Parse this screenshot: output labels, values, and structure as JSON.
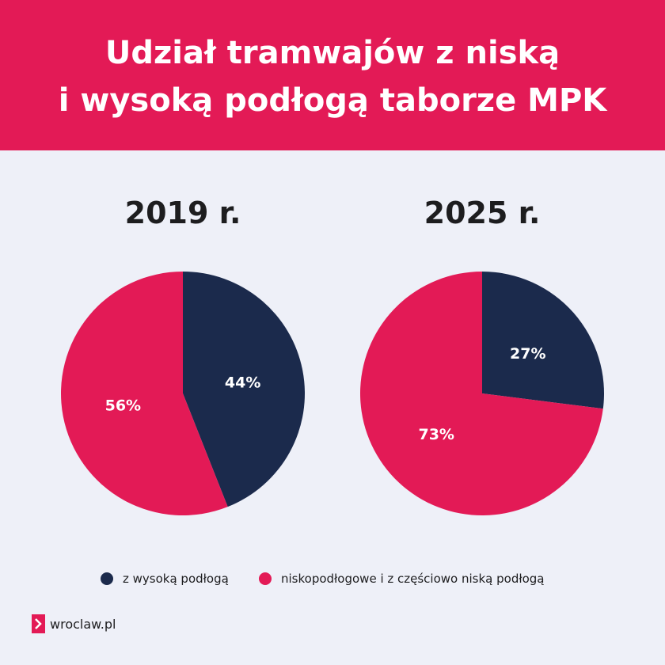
{
  "title": [
    "Udział tramwajów z niską",
    "i wysoką podłogą taborze MPK"
  ],
  "chart_data": [
    {
      "type": "pie",
      "title": "2019 r.",
      "categories": [
        "z wysoką podłogą",
        "niskopodłogowe i z częściowo niską podłogą"
      ],
      "values": [
        44,
        56
      ],
      "value_labels": [
        "44%",
        "56%"
      ],
      "colors": [
        "#1b2a4c",
        "#e31a56"
      ]
    },
    {
      "type": "pie",
      "title": "2025 r.",
      "categories": [
        "z wysoką podłogą",
        "niskopodłogowe i z częściowo niską podłogą"
      ],
      "values": [
        27,
        73
      ],
      "value_labels": [
        "27%",
        "73%"
      ],
      "colors": [
        "#1b2a4c",
        "#e31a56"
      ]
    }
  ],
  "logo": "wroclaw.pl"
}
